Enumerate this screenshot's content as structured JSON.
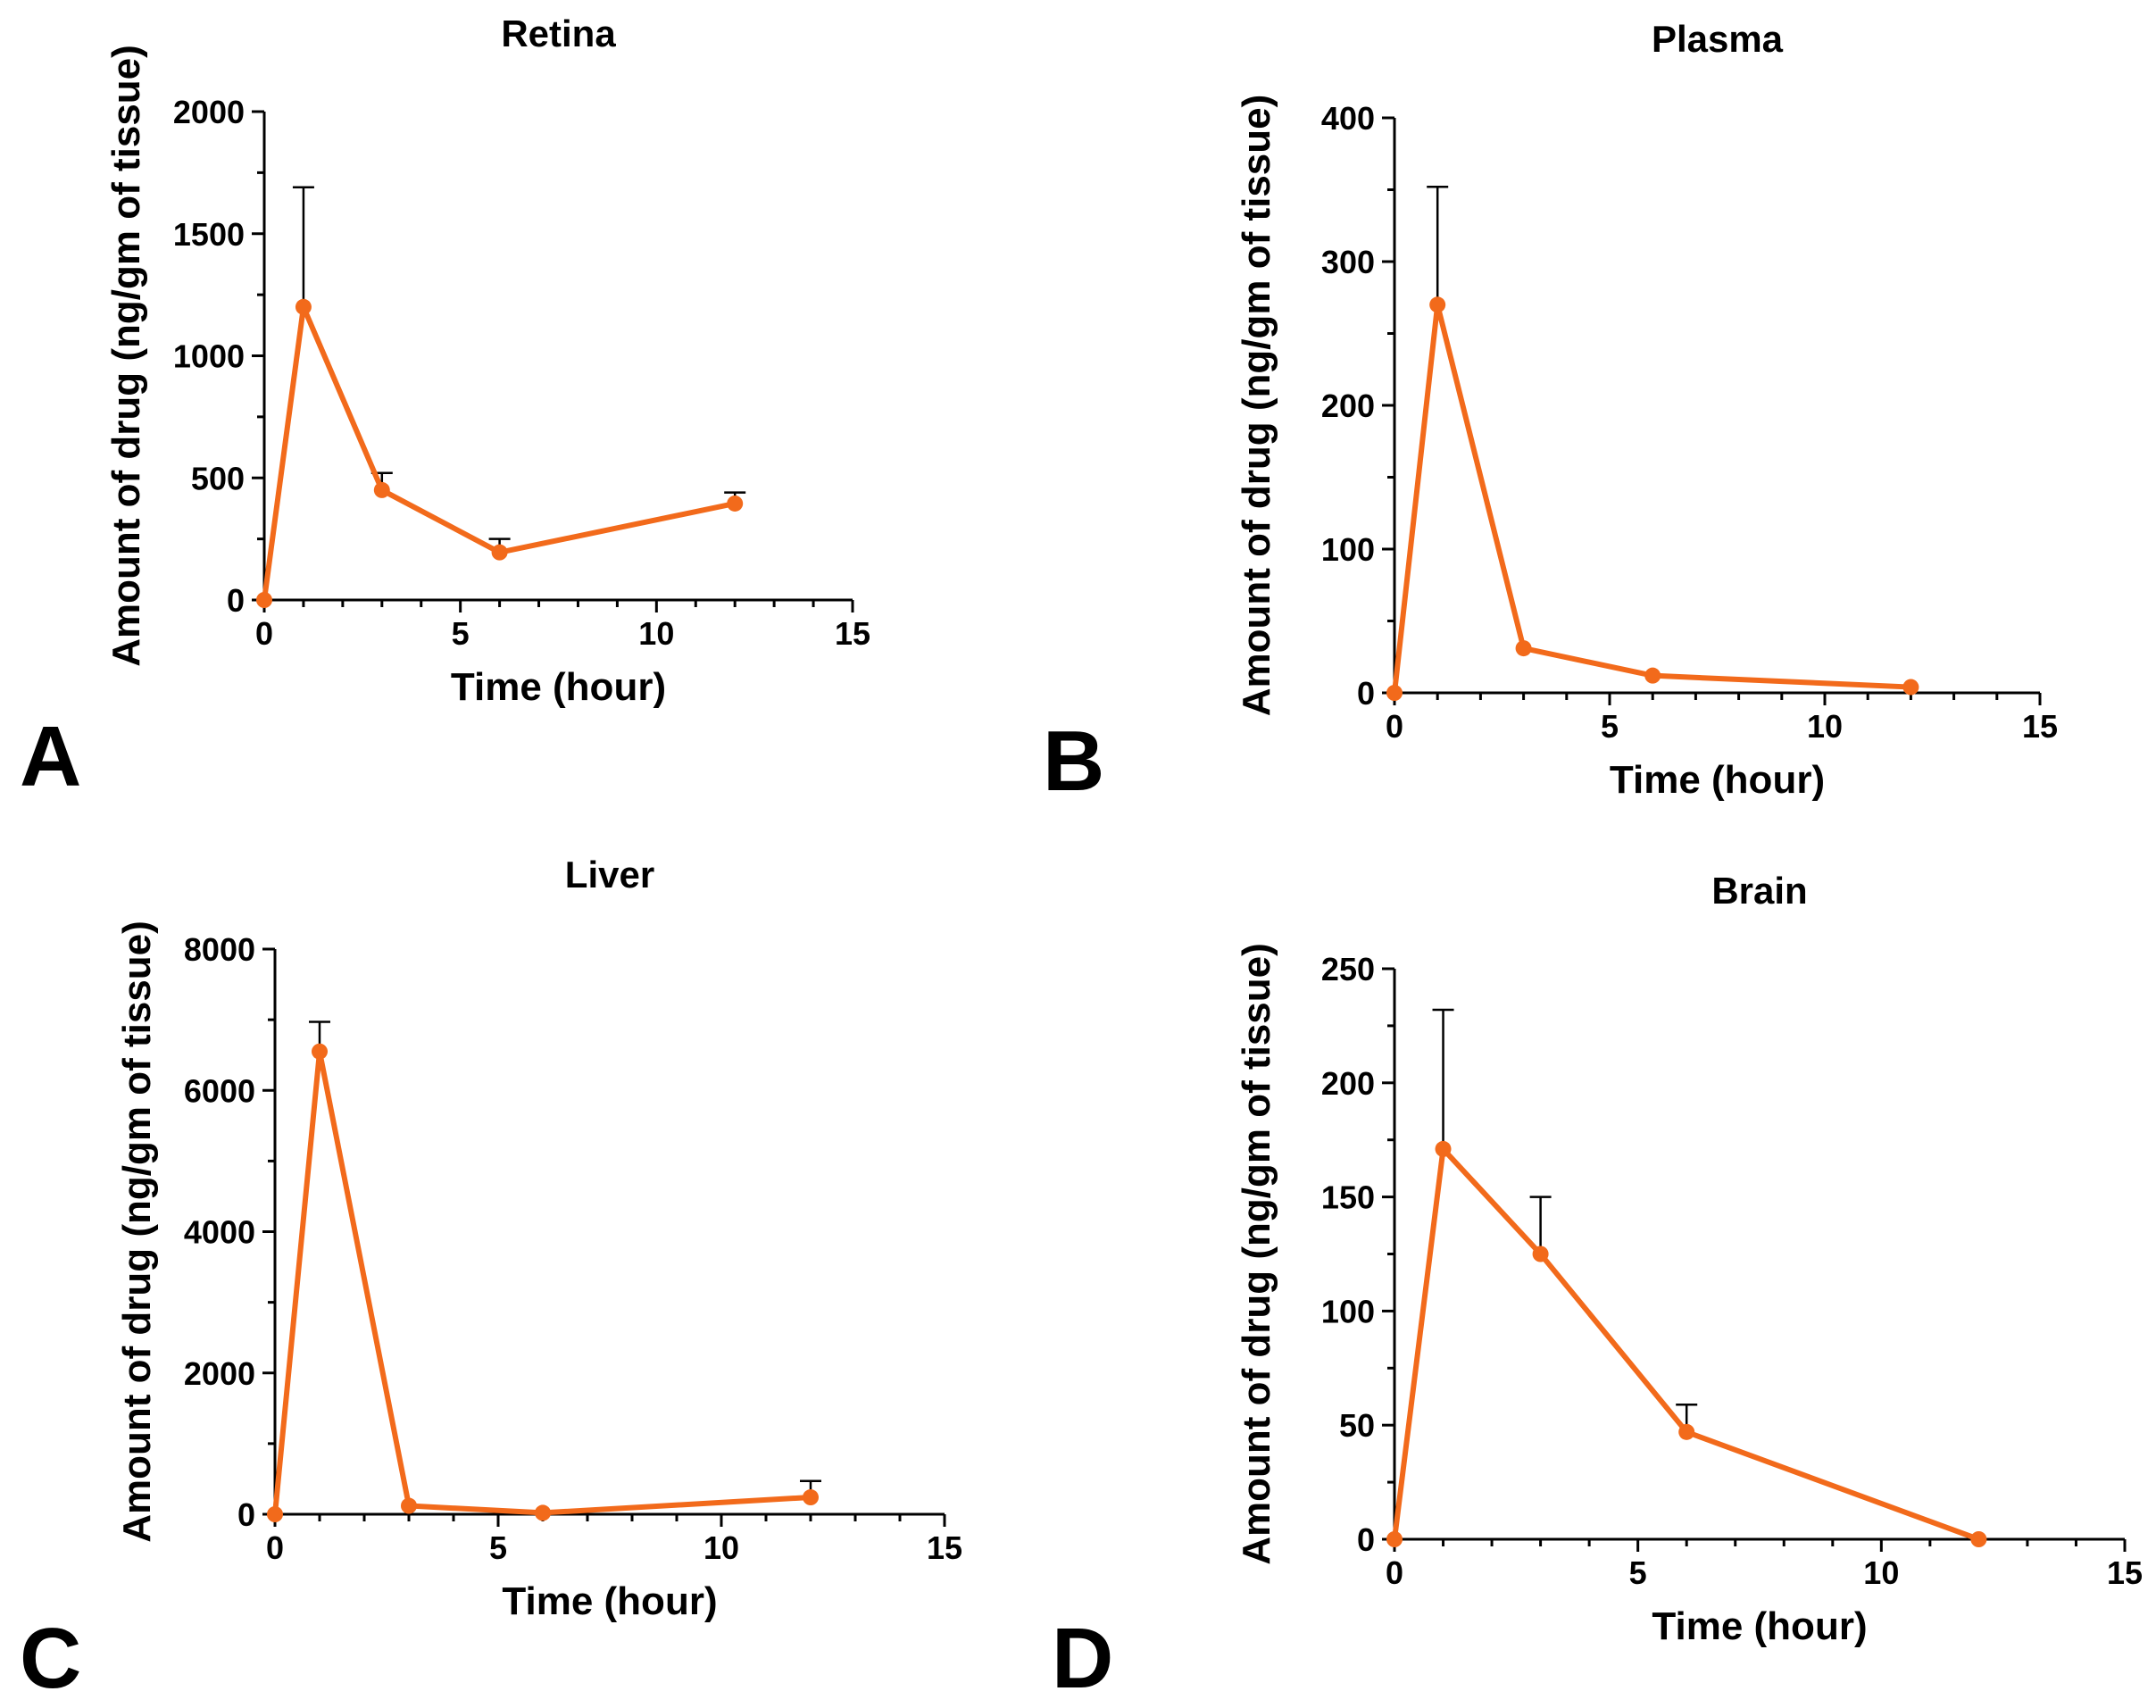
{
  "chart_data": [
    {
      "panel": "A",
      "type": "line",
      "title": "Retina",
      "xlabel": "Time (hour)",
      "ylabel": "Amount of drug (ng/gm of tissue)",
      "xlim": [
        0,
        15
      ],
      "ylim": [
        0,
        2000
      ],
      "xticks": [
        0,
        5,
        10,
        15
      ],
      "yticks": [
        0,
        500,
        1000,
        1500,
        2000
      ],
      "color": "#F26A1B",
      "x": [
        0,
        1,
        3,
        6,
        12
      ],
      "y": [
        0,
        1200,
        450,
        195,
        395
      ],
      "error": [
        0,
        490,
        70,
        55,
        45
      ]
    },
    {
      "panel": "B",
      "type": "line",
      "title": "Plasma",
      "xlabel": "Time (hour)",
      "ylabel": "Amount of drug (ng/gm of tissue)",
      "xlim": [
        0,
        15
      ],
      "ylim": [
        0,
        400
      ],
      "xticks": [
        0,
        5,
        10,
        15
      ],
      "yticks": [
        0,
        100,
        200,
        300,
        400
      ],
      "color": "#F26A1B",
      "x": [
        0,
        1,
        3,
        6,
        12
      ],
      "y": [
        0,
        270,
        31,
        12,
        4
      ],
      "error": [
        0,
        82,
        0,
        0,
        0
      ]
    },
    {
      "panel": "C",
      "type": "line",
      "title": "Liver",
      "xlabel": "Time (hour)",
      "ylabel": "Amount of drug (ng/gm of tissue)",
      "xlim": [
        0,
        15
      ],
      "ylim": [
        0,
        8000
      ],
      "xticks": [
        0,
        5,
        10,
        15
      ],
      "yticks": [
        0,
        2000,
        4000,
        6000,
        8000
      ],
      "color": "#F26A1B",
      "x": [
        0,
        1,
        3,
        6,
        12
      ],
      "y": [
        0,
        6550,
        120,
        20,
        240
      ],
      "error": [
        0,
        420,
        0,
        0,
        230
      ]
    },
    {
      "panel": "D",
      "type": "line",
      "title": "Brain",
      "xlabel": "Time (hour)",
      "ylabel": "Amount of drug (ng/gm of tissue)",
      "xlim": [
        0,
        15
      ],
      "ylim": [
        0,
        250
      ],
      "xticks": [
        0,
        5,
        10,
        15
      ],
      "yticks": [
        0,
        50,
        100,
        150,
        200,
        250
      ],
      "color": "#F26A1B",
      "x": [
        0,
        1,
        3,
        6,
        12
      ],
      "y": [
        0,
        171,
        125,
        47,
        0
      ],
      "error": [
        0,
        61,
        25,
        12,
        0
      ]
    }
  ]
}
